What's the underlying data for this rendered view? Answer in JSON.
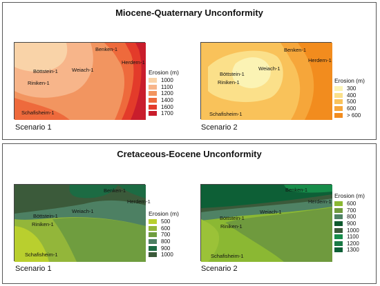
{
  "figure": {
    "top": {
      "title": "Miocene-Quaternary Unconformity",
      "scenario1": {
        "label": "Scenario 1",
        "legend_title": "Erosion (m)",
        "legend": [
          {
            "label": "1000",
            "color": "#f9d3a8"
          },
          {
            "label": "1100",
            "color": "#f7b58a"
          },
          {
            "label": "1200",
            "color": "#f29560"
          },
          {
            "label": "1400",
            "color": "#ee6a3c"
          },
          {
            "label": "1600",
            "color": "#e33b2a"
          },
          {
            "label": "1700",
            "color": "#c91d2c"
          }
        ],
        "wells": {
          "benken": "Benken-1",
          "herdern": "Herdern-1",
          "bottstein": "Böttstein-1",
          "weiach": "Weiach-1",
          "riniken": "Riniken-1",
          "schafisheim": "Schafisheim-1"
        }
      },
      "scenario2": {
        "label": "Scenario 2",
        "legend_title": "Erosion (m)",
        "legend": [
          {
            "label": "300",
            "color": "#fbf3b4"
          },
          {
            "label": "400",
            "color": "#fbe08a"
          },
          {
            "label": "500",
            "color": "#f9c25a"
          },
          {
            "label": "600",
            "color": "#f6a63a"
          },
          {
            "label": "> 600",
            "color": "#f28c1e"
          }
        ],
        "wells": {
          "benken": "Benken-1",
          "herdern": "Herdern-1",
          "bottstein": "Böttstein-1",
          "weiach": "Weiach-1",
          "riniken": "Riniken-1",
          "schafisheim": "Schafisheim-1"
        }
      }
    },
    "bottom": {
      "title": "Cretaceous-Eocene Unconformity",
      "scenario1": {
        "label": "Scenario 1",
        "legend_title": "Erosion (m)",
        "legend": [
          {
            "label": "500",
            "color": "#b9cf2e"
          },
          {
            "label": "600",
            "color": "#93b63a"
          },
          {
            "label": "700",
            "color": "#6f9d3f"
          },
          {
            "label": "800",
            "color": "#4d8063"
          },
          {
            "label": "900",
            "color": "#1c6b43"
          },
          {
            "label": "1000",
            "color": "#3b5a3a"
          }
        ],
        "wells": {
          "benken": "Benken-1",
          "herdern": "Herdern-1",
          "bottstein": "Böttstein-1",
          "weiach": "Weiach-1",
          "riniken": "Riniken-1",
          "schafisheim": "Schafisheim-1"
        }
      },
      "scenario2": {
        "label": "Scenario 2",
        "legend_title": "Erosion (m)",
        "legend": [
          {
            "label": "600",
            "color": "#8bb833"
          },
          {
            "label": "700",
            "color": "#6f9a3e"
          },
          {
            "label": "800",
            "color": "#4f8264"
          },
          {
            "label": "900",
            "color": "#0f5a2e"
          },
          {
            "label": "1000",
            "color": "#3b5a3a"
          },
          {
            "label": "1100",
            "color": "#178c4a"
          },
          {
            "label": "1200",
            "color": "#1a7a45"
          },
          {
            "label": "1300",
            "color": "#0d5f36"
          }
        ],
        "wells": {
          "benken": "Benken-1",
          "herdern": "Herdern-1",
          "bottstein": "Böttstein-1",
          "weiach": "Weiach-1",
          "riniken": "Riniken-1",
          "schafisheim": "Schafisheim-1"
        }
      }
    }
  }
}
